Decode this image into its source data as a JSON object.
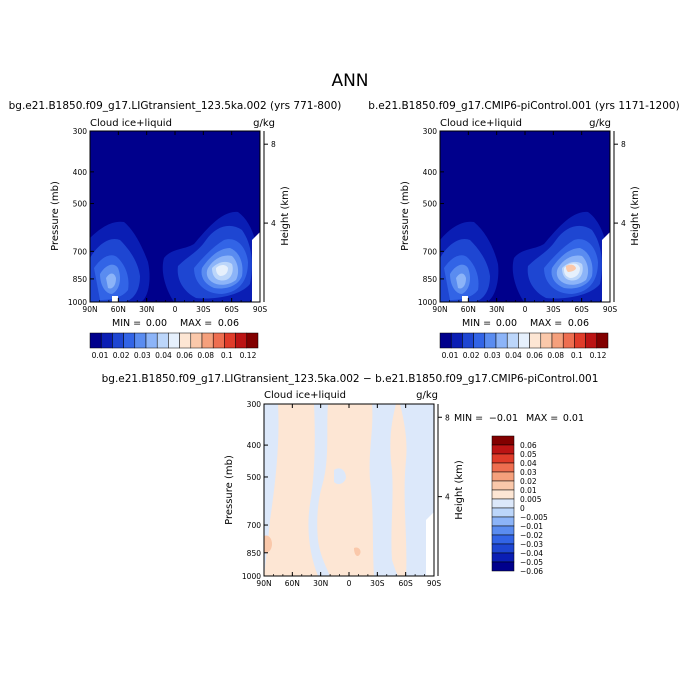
{
  "figure": {
    "title": "ANN"
  },
  "colors": {
    "abs_scale": [
      "#00008c",
      "#0a1eb4",
      "#1e46d2",
      "#3264e6",
      "#5a8cf0",
      "#8cb4f8",
      "#bcd6fa",
      "#e6f0fc",
      "#fde6d4",
      "#fac8aa",
      "#f5a07c",
      "#ee6e50",
      "#e03c2a",
      "#bc1414",
      "#820000"
    ],
    "diff_scale": [
      "#00008c",
      "#0a1eb4",
      "#1e46d2",
      "#3264e6",
      "#5a8cf0",
      "#8cb4f8",
      "#bcd6fa",
      "#dce8fa",
      "#fde6d4",
      "#fac8aa",
      "#f5a07c",
      "#ee6e50",
      "#e03c2a",
      "#bc1414",
      "#820000"
    ]
  },
  "chart_data": [
    {
      "type": "heatmap",
      "id": "p1",
      "title": "bg.e21.B1850.f09_g17.LIGtransient_123.5ka.002 (yrs 771-800)",
      "variable": "Cloud ice+liquid",
      "units": "g/kg",
      "ylabel": "Pressure (mb)",
      "y2label": "Height (km)",
      "x_ticks": [
        "90N",
        "60N",
        "30N",
        "0",
        "30S",
        "60S",
        "90S"
      ],
      "y_ticks": [
        "300",
        "400",
        "500",
        "700",
        "850",
        "1000"
      ],
      "y2_ticks": [
        "8",
        "4"
      ],
      "min_label": "MIN =",
      "min": "0.00",
      "max_label": "MAX =",
      "max": "0.06",
      "legend_levels": [
        "0.01",
        "0.02",
        "0.03",
        "0.04",
        "0.06",
        "0.08",
        "0.1",
        "0.12"
      ]
    },
    {
      "type": "heatmap",
      "id": "p2",
      "title": "b.e21.B1850.f09_g17.CMIP6-piControl.001 (yrs 1171-1200)",
      "variable": "Cloud ice+liquid",
      "units": "g/kg",
      "ylabel": "Pressure (mb)",
      "y2label": "Height (km)",
      "x_ticks": [
        "90N",
        "60N",
        "30N",
        "0",
        "30S",
        "60S",
        "90S"
      ],
      "y_ticks": [
        "300",
        "400",
        "500",
        "700",
        "850",
        "1000"
      ],
      "y2_ticks": [
        "8",
        "4"
      ],
      "min_label": "MIN =",
      "min": "0.00",
      "max_label": "MAX =",
      "max": "0.06",
      "legend_levels": [
        "0.01",
        "0.02",
        "0.03",
        "0.04",
        "0.06",
        "0.08",
        "0.1",
        "0.12"
      ]
    },
    {
      "type": "heatmap",
      "id": "p3",
      "title": "bg.e21.B1850.f09_g17.LIGtransient_123.5ka.002 − b.e21.B1850.f09_g17.CMIP6-piControl.001",
      "variable": "Cloud ice+liquid",
      "units": "g/kg",
      "ylabel": "Pressure (mb)",
      "y2label": "Height (km)",
      "x_ticks": [
        "90N",
        "60N",
        "30N",
        "0",
        "30S",
        "60S",
        "90S"
      ],
      "y_ticks": [
        "300",
        "400",
        "500",
        "700",
        "850",
        "1000"
      ],
      "y2_ticks": [
        "8",
        "4"
      ],
      "min_label": "MIN =",
      "min": "−0.01",
      "max_label": "MAX =",
      "max": "0.01",
      "legend_levels": [
        "0.06",
        "0.05",
        "0.04",
        "0.03",
        "0.02",
        "0.01",
        "0.005",
        "0",
        "−0.005",
        "−0.01",
        "−0.02",
        "−0.03",
        "−0.04",
        "−0.05",
        "−0.06"
      ]
    }
  ]
}
